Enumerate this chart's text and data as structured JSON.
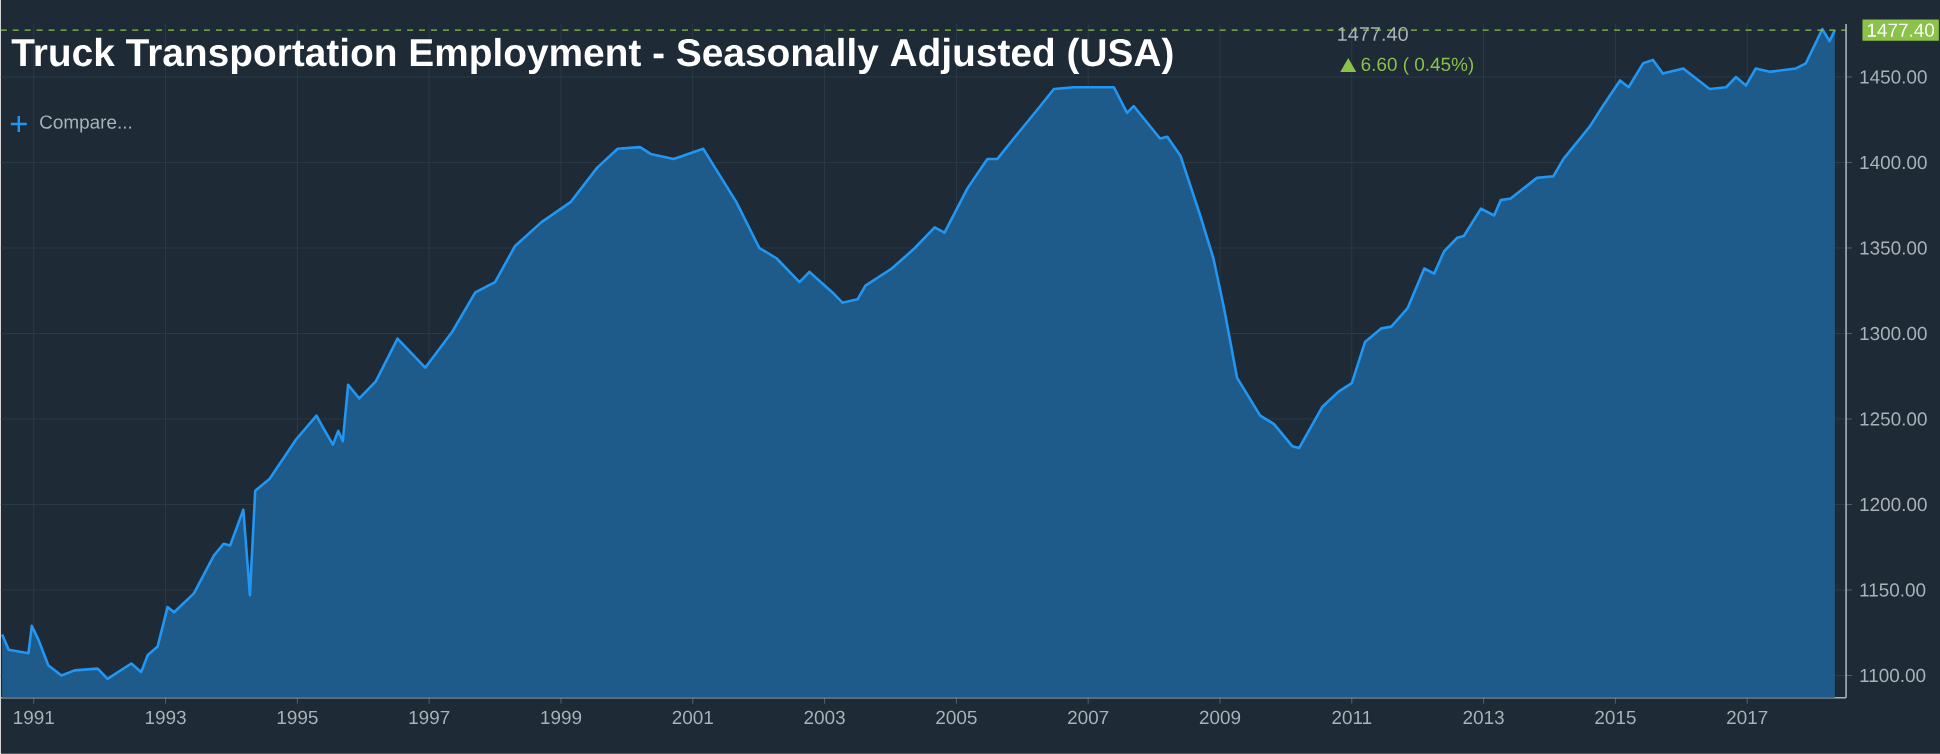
{
  "chart_data": {
    "type": "area",
    "title": "Truck Transportation Employment - Seasonally Adjusted (USA)",
    "annotations": [
      "1477.40",
      "6.60 ( 0.45%)",
      "Compare..."
    ],
    "xlim": [
      1990.5,
      2018.5
    ],
    "xticks": [
      1991,
      1993,
      1995,
      1997,
      1999,
      2001,
      2003,
      2005,
      2007,
      2009,
      2011,
      2013,
      2015,
      2017
    ],
    "ylim": [
      1087,
      1481
    ],
    "yticks": [
      {
        "value": 1100,
        "label": "1100.00"
      },
      {
        "value": 1150,
        "label": "1150.00"
      },
      {
        "value": 1200,
        "label": "1200.00"
      },
      {
        "value": 1250,
        "label": "1250.00"
      },
      {
        "value": 1300,
        "label": "1300.00"
      },
      {
        "value": 1350,
        "label": "1350.00"
      },
      {
        "value": 1400,
        "label": "1400.00"
      },
      {
        "value": 1450,
        "label": "1450.00"
      }
    ],
    "grid": true,
    "ref_lines": [
      {
        "axis": "y",
        "value": 1477.4,
        "label": "1477.40",
        "color": "#8bc34a",
        "line_style": "dashed"
      }
    ],
    "series": [
      {
        "color": "#2196f3",
        "x": [
          1990.52,
          1990.62,
          1990.92,
          1990.97,
          1991.07,
          1991.22,
          1991.42,
          1991.62,
          1991.97,
          1992.12,
          1992.48,
          1992.63,
          1992.73,
          1992.88,
          1993.03,
          1993.13,
          1993.43,
          1993.73,
          1993.88,
          1993.98,
          1994.18,
          1994.28,
          1994.36,
          1994.58,
          1994.98,
          1995.29,
          1995.39,
          1995.54,
          1995.62,
          1995.69,
          1995.77,
          1995.94,
          1996.19,
          1996.52,
          1996.94,
          1997.35,
          1997.7,
          1998.0,
          1998.3,
          1998.7,
          1999.15,
          1999.55,
          1999.86,
          2000.2,
          2000.36,
          2000.71,
          2001.16,
          2001.66,
          2002.01,
          2002.27,
          2002.62,
          2002.77,
          2003.12,
          2003.27,
          2003.5,
          2003.62,
          2004.02,
          2004.37,
          2004.67,
          2004.82,
          2005.17,
          2005.47,
          2005.62,
          2005.87,
          2006.23,
          2006.48,
          2006.78,
          2007.39,
          2007.59,
          2007.69,
          2008.09,
          2008.2,
          2008.4,
          2008.7,
          2008.9,
          2009.06,
          2009.26,
          2009.61,
          2009.82,
          2010.1,
          2010.2,
          2010.55,
          2010.8,
          2011.0,
          2011.2,
          2011.45,
          2011.6,
          2011.85,
          2012.1,
          2012.25,
          2012.4,
          2012.6,
          2012.7,
          2012.96,
          2013.16,
          2013.26,
          2013.41,
          2013.81,
          2014.06,
          2014.21,
          2014.61,
          2014.81,
          2015.07,
          2015.2,
          2015.42,
          2015.57,
          2015.72,
          2016.03,
          2016.43,
          2016.68,
          2016.83,
          2016.98,
          2017.13,
          2017.34,
          2017.74,
          2017.89,
          2018.14,
          2018.25,
          2018.33
        ],
        "values": [
          1124,
          1115,
          1113,
          1129,
          1121,
          1106,
          1100,
          1103,
          1104,
          1098,
          1107,
          1102,
          1112,
          1117,
          1140,
          1137,
          1148,
          1170,
          1177,
          1176,
          1197,
          1147,
          1208,
          1215,
          1238,
          1252,
          1245,
          1235,
          1243,
          1237,
          1270,
          1262,
          1272,
          1297,
          1280,
          1301,
          1324,
          1330,
          1351,
          1365,
          1377,
          1397,
          1408,
          1409,
          1405,
          1402,
          1408,
          1377,
          1350,
          1344,
          1330,
          1336,
          1324,
          1318,
          1320,
          1328,
          1338,
          1350,
          1362,
          1359,
          1385,
          1402,
          1402,
          1414,
          1431,
          1443,
          1444,
          1444,
          1429,
          1433,
          1414,
          1415,
          1404,
          1369,
          1344,
          1315,
          1274,
          1252,
          1247,
          1234,
          1233,
          1257,
          1266,
          1271,
          1295,
          1303,
          1304,
          1315,
          1338,
          1335,
          1348,
          1356,
          1357,
          1373,
          1369,
          1378,
          1379,
          1391,
          1392,
          1402,
          1421,
          1433,
          1448,
          1444,
          1458,
          1460,
          1452,
          1455,
          1443,
          1444,
          1450,
          1445,
          1455,
          1453,
          1455,
          1458,
          1478,
          1471,
          1477.4
        ]
      }
    ]
  }
}
